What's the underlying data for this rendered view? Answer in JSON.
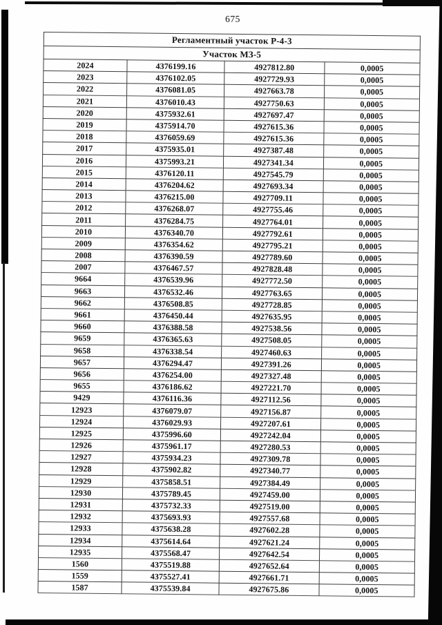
{
  "page": {
    "number": "675"
  },
  "table": {
    "header1": "Регламентный участок Р-4-3",
    "header2": "Участок МЗ-5",
    "tolerance_value": "0,0005",
    "rows": [
      [
        "2024",
        "4376199.16",
        "4927812.80",
        "0,0005"
      ],
      [
        "2023",
        "4376102.05",
        "4927729.93",
        "0,0005"
      ],
      [
        "2022",
        "4376081.05",
        "4927663.78",
        "0,0005"
      ],
      [
        "2021",
        "4376010.43",
        "4927750.63",
        "0,0005"
      ],
      [
        "2020",
        "4375932.61",
        "4927697.47",
        "0,0005"
      ],
      [
        "2019",
        "4375914.70",
        "4927615.36",
        "0,0005"
      ],
      [
        "2018",
        "4376059.69",
        "4927615.36",
        "0,0005"
      ],
      [
        "2017",
        "4375935.01",
        "4927387.48",
        "0,0005"
      ],
      [
        "2016",
        "4375993.21",
        "4927341.34",
        "0,0005"
      ],
      [
        "2015",
        "4376120.11",
        "4927545.79",
        "0,0005"
      ],
      [
        "2014",
        "4376204.62",
        "4927693.34",
        "0,0005"
      ],
      [
        "2013",
        "4376215.00",
        "4927709.11",
        "0,0005"
      ],
      [
        "2012",
        "4376268.07",
        "4927755.46",
        "0,0005"
      ],
      [
        "2011",
        "4376284.75",
        "4927764.01",
        "0,0005"
      ],
      [
        "2010",
        "4376340.70",
        "4927792.61",
        "0,0005"
      ],
      [
        "2009",
        "4376354.62",
        "4927795.21",
        "0,0005"
      ],
      [
        "2008",
        "4376390.59",
        "4927789.60",
        "0,0005"
      ],
      [
        "2007",
        "4376467.57",
        "4927828.48",
        "0,0005"
      ],
      [
        "9664",
        "4376539.96",
        "4927772.50",
        "0,0005"
      ],
      [
        "9663",
        "4376532.46",
        "4927763.65",
        "0,0005"
      ],
      [
        "9662",
        "4376508.85",
        "4927728.85",
        "0,0005"
      ],
      [
        "9661",
        "4376450.44",
        "4927635.95",
        "0,0005"
      ],
      [
        "9660",
        "4376388.58",
        "4927538.56",
        "0,0005"
      ],
      [
        "9659",
        "4376365.63",
        "4927508.05",
        "0,0005"
      ],
      [
        "9658",
        "4376338.54",
        "4927460.63",
        "0,0005"
      ],
      [
        "9657",
        "4376294.47",
        "4927391.26",
        "0,0005"
      ],
      [
        "9656",
        "4376254.00",
        "4927327.48",
        "0,0005"
      ],
      [
        "9655",
        "4376186.62",
        "4927221.70",
        "0,0005"
      ],
      [
        "9429",
        "4376116.36",
        "4927112.56",
        "0,0005"
      ],
      [
        "12923",
        "4376079.07",
        "4927156.87",
        "0,0005"
      ],
      [
        "12924",
        "4376029.93",
        "4927207.61",
        "0,0005"
      ],
      [
        "12925",
        "4375996.60",
        "4927242.04",
        "0,0005"
      ],
      [
        "12926",
        "4375961.17",
        "4927280.53",
        "0,0005"
      ],
      [
        "12927",
        "4375934.23",
        "4927309.78",
        "0,0005"
      ],
      [
        "12928",
        "4375902.82",
        "4927340.77",
        "0,0005"
      ],
      [
        "12929",
        "4375858.51",
        "4927384.49",
        "0,0005"
      ],
      [
        "12930",
        "4375789.45",
        "4927459.00",
        "0,0005"
      ],
      [
        "12931",
        "4375732.33",
        "4927519.00",
        "0,0005"
      ],
      [
        "12932",
        "4375693.93",
        "4927557.68",
        "0,0005"
      ],
      [
        "12933",
        "4375638.28",
        "4927602.28",
        "0,0005"
      ],
      [
        "12934",
        "4375614.64",
        "4927621.24",
        "0,0005"
      ],
      [
        "12935",
        "4375568.47",
        "4927642.54",
        "0,0005"
      ],
      [
        "1560",
        "4375519.88",
        "4927652.64",
        "0,0005"
      ],
      [
        "1559",
        "4375527.41",
        "4927661.71",
        "0,0005"
      ],
      [
        "1587",
        "4375539.84",
        "4927675.86",
        "0,0005"
      ]
    ]
  },
  "colors": {
    "paper": "#fefefe",
    "ink": "#121212",
    "grid_line": "#3b3b3b",
    "scan_artifact": "#070707"
  }
}
